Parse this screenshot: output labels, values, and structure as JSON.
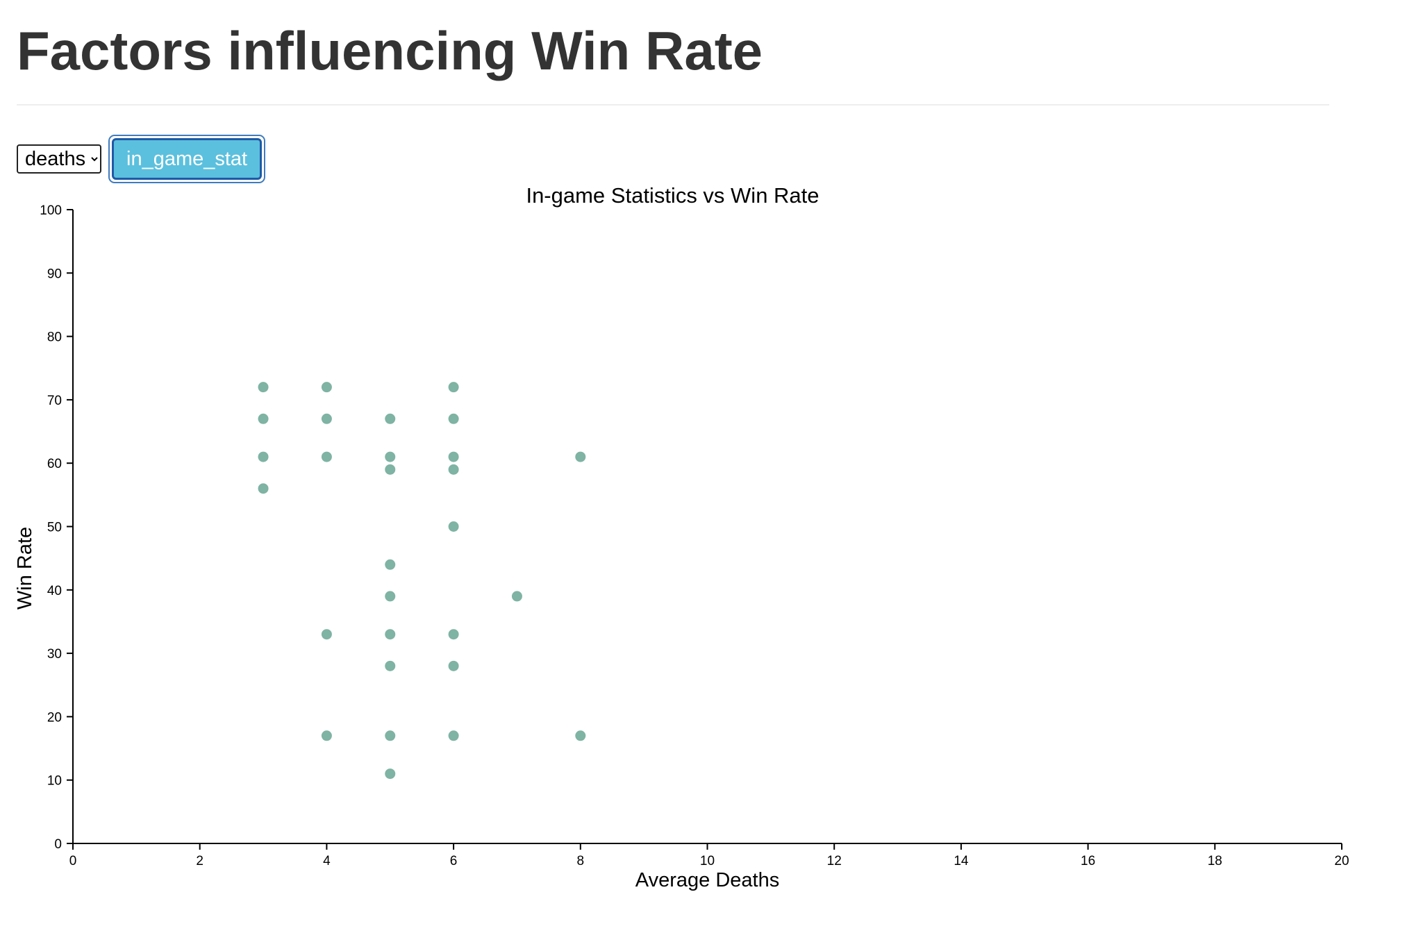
{
  "header": {
    "title": "Factors influencing Win Rate"
  },
  "controls": {
    "select": {
      "value": "deaths",
      "options": [
        "deaths"
      ]
    },
    "button_label": "in_game_stat"
  },
  "colors": {
    "point": "#7fb3a3",
    "button_bg": "#5bc0de",
    "button_border": "#1f5aa6"
  },
  "chart_data": {
    "type": "scatter",
    "title": "In-game Statistics vs Win Rate",
    "xlabel": "Average Deaths",
    "ylabel": "Win Rate",
    "xlim": [
      0,
      20
    ],
    "ylim": [
      0,
      100
    ],
    "x_ticks": [
      0,
      2,
      4,
      6,
      8,
      10,
      12,
      14,
      16,
      18,
      20
    ],
    "y_ticks": [
      0,
      10,
      20,
      30,
      40,
      50,
      60,
      70,
      80,
      90,
      100
    ],
    "grid": false,
    "points": [
      {
        "x": 3,
        "y": 72
      },
      {
        "x": 3,
        "y": 67
      },
      {
        "x": 3,
        "y": 61
      },
      {
        "x": 3,
        "y": 56
      },
      {
        "x": 4,
        "y": 72
      },
      {
        "x": 4,
        "y": 67
      },
      {
        "x": 4,
        "y": 61
      },
      {
        "x": 4,
        "y": 33
      },
      {
        "x": 4,
        "y": 17
      },
      {
        "x": 5,
        "y": 67
      },
      {
        "x": 5,
        "y": 61
      },
      {
        "x": 5,
        "y": 59
      },
      {
        "x": 5,
        "y": 44
      },
      {
        "x": 5,
        "y": 39
      },
      {
        "x": 5,
        "y": 33
      },
      {
        "x": 5,
        "y": 28
      },
      {
        "x": 5,
        "y": 17
      },
      {
        "x": 5,
        "y": 11
      },
      {
        "x": 6,
        "y": 72
      },
      {
        "x": 6,
        "y": 67
      },
      {
        "x": 6,
        "y": 61
      },
      {
        "x": 6,
        "y": 59
      },
      {
        "x": 6,
        "y": 50
      },
      {
        "x": 6,
        "y": 33
      },
      {
        "x": 6,
        "y": 28
      },
      {
        "x": 6,
        "y": 17
      },
      {
        "x": 7,
        "y": 39
      },
      {
        "x": 8,
        "y": 61
      },
      {
        "x": 8,
        "y": 17
      }
    ]
  }
}
